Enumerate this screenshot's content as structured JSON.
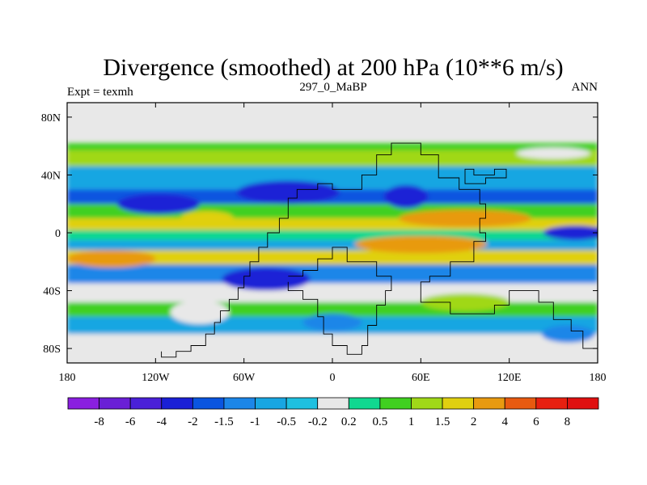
{
  "chart_data": {
    "type": "heatmap",
    "title": "Divergence (smoothed) at 200 hPa (10**6 m/s)",
    "subtitle_left": "Expt = texmh",
    "subtitle_center": "297_0_MaBP",
    "subtitle_right": "ANN",
    "x_ticks": [
      {
        "value": -180,
        "label": "180"
      },
      {
        "value": -120,
        "label": "120W"
      },
      {
        "value": -60,
        "label": "60W"
      },
      {
        "value": 0,
        "label": "0"
      },
      {
        "value": 60,
        "label": "60E"
      },
      {
        "value": 120,
        "label": "120E"
      },
      {
        "value": 180,
        "label": "180"
      }
    ],
    "y_ticks": [
      {
        "value": 80,
        "label": "80N"
      },
      {
        "value": 40,
        "label": "40N"
      },
      {
        "value": 0,
        "label": "0"
      },
      {
        "value": -40,
        "label": "40S"
      },
      {
        "value": -80,
        "label": "80S"
      }
    ],
    "xlim": [
      -180,
      180
    ],
    "ylim": [
      -90,
      90
    ],
    "colorbar_levels": [
      "-8",
      "-6",
      "-4",
      "-2",
      "-1.5",
      "-1",
      "-0.5",
      "-0.2",
      "0.2",
      "0.5",
      "1",
      "1.5",
      "2",
      "4",
      "6",
      "8"
    ],
    "colorbar_colors": [
      "#8a1fe0",
      "#6a1fd6",
      "#4a20d8",
      "#1a20d6",
      "#0a55e0",
      "#1c86e8",
      "#18a6e2",
      "#1ec0e0",
      "#e8e8e8",
      "#10d890",
      "#40d020",
      "#a0d818",
      "#e0d010",
      "#e89a10",
      "#e85a10",
      "#e82010",
      "#e01010"
    ],
    "bands": [
      {
        "lat_min": 57,
        "lat_max": 62,
        "value": 0.7
      },
      {
        "lat_min": 46,
        "lat_max": 57,
        "value": 1.1
      },
      {
        "lat_min": 30,
        "lat_max": 46,
        "value": -0.8
      },
      {
        "lat_min": 20,
        "lat_max": 30,
        "value": -1.8
      },
      {
        "lat_min": 10,
        "lat_max": 20,
        "value": 0.6
      },
      {
        "lat_min": 2,
        "lat_max": 10,
        "value": 1.7
      },
      {
        "lat_min": -5,
        "lat_max": 2,
        "value": 0.4
      },
      {
        "lat_min": -12,
        "lat_max": -5,
        "value": -0.7
      },
      {
        "lat_min": -22,
        "lat_max": -12,
        "value": 1.8
      },
      {
        "lat_min": -35,
        "lat_max": -22,
        "value": -1.2
      },
      {
        "lat_min": -48,
        "lat_max": -35,
        "value": 0.1
      },
      {
        "lat_min": -58,
        "lat_max": -48,
        "value": 0.8
      },
      {
        "lat_min": -70,
        "lat_max": -58,
        "value": -0.6
      },
      {
        "lat_min": -78,
        "lat_max": -70,
        "value": 0.1
      }
    ],
    "blobs": [
      {
        "lon": -118,
        "lat": 20,
        "rlon": 28,
        "rlat": 7,
        "value": -2.2
      },
      {
        "lon": -30,
        "lat": 28,
        "rlon": 35,
        "rlat": 8,
        "value": -3.0
      },
      {
        "lon": 50,
        "lat": 25,
        "rlon": 15,
        "rlat": 8,
        "value": -2.5
      },
      {
        "lon": 165,
        "lat": 0,
        "rlon": 22,
        "rlat": 5,
        "value": -2.3
      },
      {
        "lon": -45,
        "lat": -32,
        "rlon": 30,
        "rlat": 8,
        "value": -3.0
      },
      {
        "lon": 90,
        "lat": 10,
        "rlon": 45,
        "rlat": 6,
        "value": 2.2
      },
      {
        "lon": 60,
        "lat": -8,
        "rlon": 45,
        "rlat": 6,
        "value": 2.5
      },
      {
        "lon": -150,
        "lat": -18,
        "rlon": 30,
        "rlat": 6,
        "value": 2.2
      },
      {
        "lon": -85,
        "lat": 10,
        "rlon": 18,
        "rlat": 5,
        "value": 1.8
      },
      {
        "lon": 0,
        "lat": -62,
        "rlon": 20,
        "rlat": 6,
        "value": -1.2
      },
      {
        "lon": 160,
        "lat": -70,
        "rlon": 18,
        "rlat": 6,
        "value": -1.1
      },
      {
        "lon": 150,
        "lat": 55,
        "rlon": 25,
        "rlat": 4,
        "value": 0.1
      },
      {
        "lon": -90,
        "lat": -55,
        "rlon": 20,
        "rlat": 8,
        "value": 0.1
      },
      {
        "lon": 90,
        "lat": -48,
        "rlon": 30,
        "rlat": 6,
        "value": 1.2
      }
    ],
    "continent_outline": [
      [
        -116,
        -82
      ],
      [
        -116,
        -86
      ],
      [
        -106,
        -86
      ],
      [
        -106,
        -82
      ],
      [
        -96,
        -82
      ],
      [
        -96,
        -78
      ],
      [
        -86,
        -78
      ],
      [
        -86,
        -70
      ],
      [
        -80,
        -70
      ],
      [
        -80,
        -62
      ],
      [
        -76,
        -62
      ],
      [
        -76,
        -54
      ],
      [
        -70,
        -54
      ],
      [
        -70,
        -46
      ],
      [
        -64,
        -46
      ],
      [
        -64,
        -38
      ],
      [
        -60,
        -38
      ],
      [
        -60,
        -30
      ],
      [
        -56,
        -30
      ],
      [
        -56,
        -20
      ],
      [
        -50,
        -20
      ],
      [
        -50,
        -10
      ],
      [
        -44,
        -10
      ],
      [
        -44,
        0
      ],
      [
        -36,
        0
      ],
      [
        -36,
        10
      ],
      [
        -30,
        10
      ],
      [
        -30,
        24
      ],
      [
        -24,
        24
      ],
      [
        -24,
        30
      ],
      [
        -10,
        30
      ],
      [
        -10,
        34
      ],
      [
        0,
        34
      ],
      [
        0,
        30
      ],
      [
        20,
        30
      ],
      [
        20,
        40
      ],
      [
        30,
        40
      ],
      [
        30,
        54
      ],
      [
        40,
        54
      ],
      [
        40,
        62
      ],
      [
        60,
        62
      ],
      [
        60,
        54
      ],
      [
        72,
        54
      ],
      [
        72,
        38
      ],
      [
        86,
        38
      ],
      [
        86,
        30
      ],
      [
        100,
        30
      ],
      [
        100,
        20
      ],
      [
        104,
        20
      ],
      [
        104,
        10
      ],
      [
        100,
        10
      ],
      [
        100,
        0
      ],
      [
        104,
        0
      ],
      [
        104,
        -6
      ],
      [
        96,
        -6
      ],
      [
        96,
        -20
      ],
      [
        80,
        -20
      ],
      [
        80,
        -30
      ],
      [
        66,
        -30
      ],
      [
        66,
        -34
      ],
      [
        60,
        -34
      ],
      [
        60,
        -48
      ],
      [
        80,
        -48
      ],
      [
        80,
        -56
      ],
      [
        110,
        -56
      ],
      [
        110,
        -50
      ],
      [
        120,
        -50
      ],
      [
        120,
        -40
      ],
      [
        140,
        -40
      ],
      [
        140,
        -48
      ],
      [
        150,
        -48
      ],
      [
        150,
        -60
      ],
      [
        162,
        -60
      ],
      [
        162,
        -68
      ],
      [
        170,
        -68
      ],
      [
        170,
        -80
      ],
      [
        180,
        -80
      ]
    ],
    "secondary_outline": [
      [
        -30,
        -34
      ],
      [
        -30,
        -40
      ],
      [
        -20,
        -40
      ],
      [
        -20,
        -46
      ],
      [
        -10,
        -46
      ],
      [
        -10,
        -58
      ],
      [
        -6,
        -58
      ],
      [
        -6,
        -70
      ],
      [
        0,
        -70
      ],
      [
        0,
        -78
      ],
      [
        10,
        -78
      ],
      [
        10,
        -84
      ],
      [
        20,
        -84
      ],
      [
        20,
        -78
      ],
      [
        24,
        -78
      ],
      [
        24,
        -64
      ],
      [
        30,
        -64
      ],
      [
        30,
        -50
      ],
      [
        36,
        -50
      ],
      [
        36,
        -40
      ],
      [
        40,
        -40
      ],
      [
        40,
        -30
      ],
      [
        30,
        -30
      ],
      [
        30,
        -20
      ],
      [
        10,
        -20
      ],
      [
        10,
        -10
      ],
      [
        0,
        -10
      ],
      [
        0,
        -18
      ],
      [
        -10,
        -18
      ],
      [
        -10,
        -26
      ],
      [
        -20,
        -26
      ],
      [
        -20,
        -30
      ],
      [
        -30,
        -30
      ]
    ],
    "asia_outline": [
      [
        90,
        40
      ],
      [
        90,
        44
      ],
      [
        96,
        44
      ],
      [
        96,
        40
      ],
      [
        110,
        40
      ],
      [
        110,
        44
      ],
      [
        118,
        44
      ],
      [
        118,
        38
      ],
      [
        104,
        38
      ],
      [
        104,
        34
      ],
      [
        90,
        34
      ],
      [
        90,
        40
      ]
    ]
  }
}
